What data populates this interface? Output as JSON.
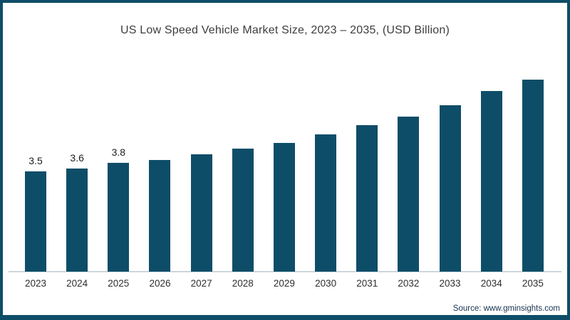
{
  "chart_data": {
    "type": "bar",
    "title": "US Low Speed Vehicle Market Size, 2023 – 2035, (USD Billion)",
    "categories": [
      "2023",
      "2024",
      "2025",
      "2026",
      "2027",
      "2028",
      "2029",
      "2030",
      "2031",
      "2032",
      "2033",
      "2034",
      "2035"
    ],
    "values": [
      3.5,
      3.6,
      3.8,
      3.9,
      4.1,
      4.3,
      4.5,
      4.8,
      5.1,
      5.4,
      5.8,
      6.3,
      6.7
    ],
    "data_labels": [
      "3.5",
      "3.6",
      "3.8",
      "",
      "",
      "",
      "",
      "",
      "",
      "",
      "",
      "",
      ""
    ],
    "xlabel": "",
    "ylabel": "",
    "ylim": [
      0,
      7
    ],
    "grid": false,
    "legend": false,
    "bar_color": "#0e4d68",
    "axis_line_color": "#ccd7dc"
  },
  "frame": {
    "border_color": "#0e4d68",
    "background": "#ffffff"
  },
  "source": "Source: www.gminsights.com"
}
